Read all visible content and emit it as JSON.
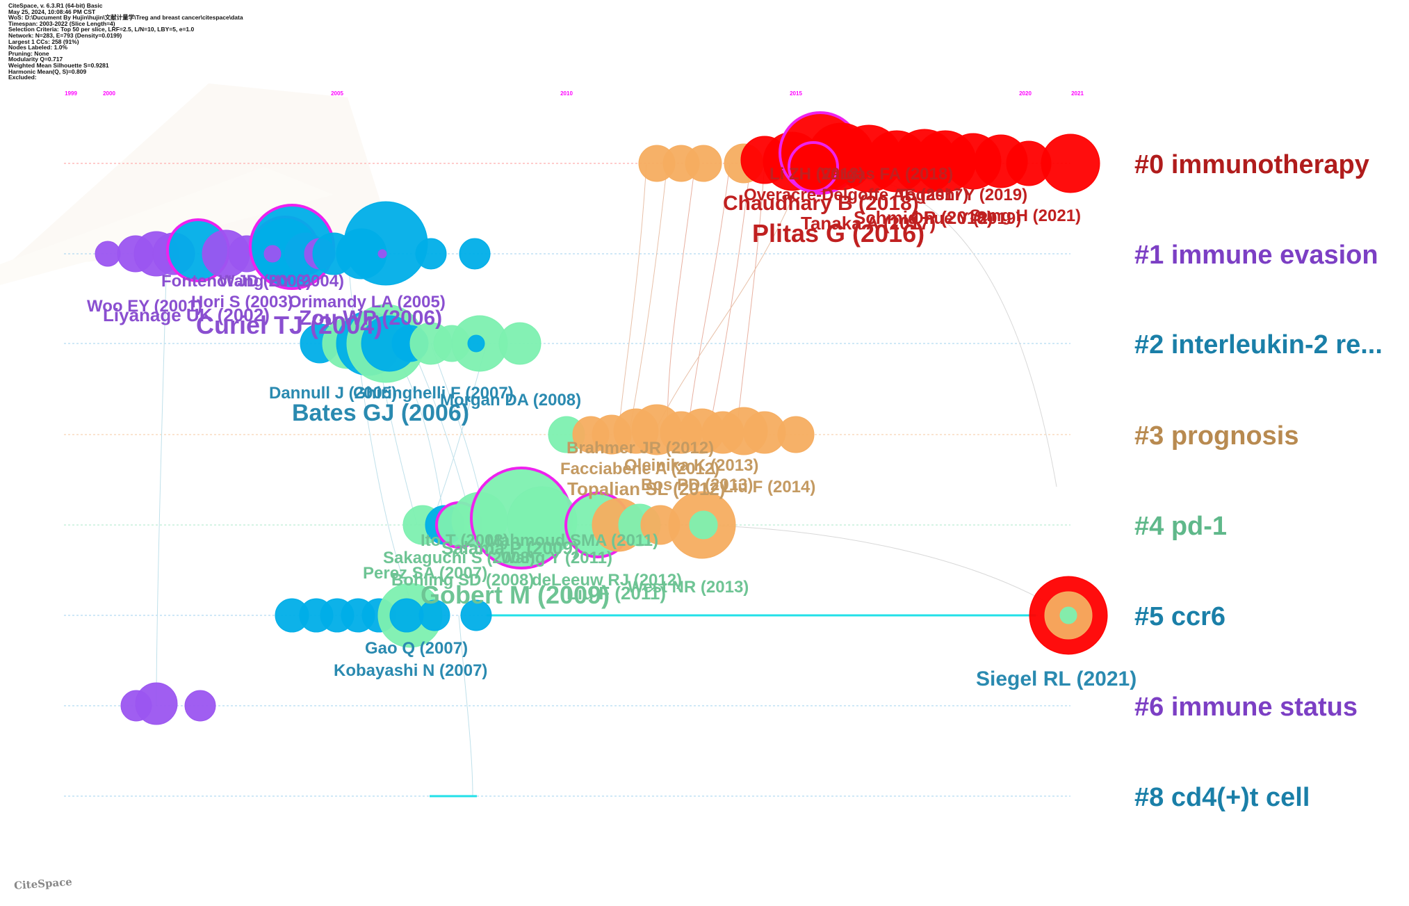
{
  "header": {
    "lines": [
      "CiteSpace, v. 6.3.R1 (64-bit) Basic",
      "May 25, 2024, 10:08:46 PM CST",
      "WoS: D:\\Ducument By Hujin\\hujin\\文献计量学\\Treg and breast cancer\\citespace\\data",
      "Timespan: 2003-2022 (Slice Length=4)",
      "Selection Criteria: Top 50 per slice, LRF=2.5, L/N=10, LBY=5, e=1.0",
      "Network: N=283, E=793 (Density=0.0199)",
      "Largest 1 CCs: 258 (91%)",
      "Nodes Labeled: 1.0%",
      "Pruning: None",
      "Modularity Q=0.717",
      "Weighted Mean Silhouette S=0.9281",
      "Harmonic Mean(Q, S)=0.809",
      "Excluded:"
    ]
  },
  "timeline": {
    "years": [
      "1999",
      "2000",
      "2005",
      "2010",
      "2015",
      "2020",
      "2021"
    ]
  },
  "clusters": [
    {
      "label": "#0 immunotherapy",
      "color": "#b01c1c"
    },
    {
      "label": "#1 immune evasion",
      "color": "#7c3fc4"
    },
    {
      "label": "#2 interleukin-2 re...",
      "color": "#1a7fa8"
    },
    {
      "label": "#3 prognosis",
      "color": "#b88a50"
    },
    {
      "label": "#4 pd-1",
      "color": "#5fb88a"
    },
    {
      "label": "#5 ccr6",
      "color": "#1a7fa8"
    },
    {
      "label": "#6 immune status",
      "color": "#7c3fc4"
    },
    {
      "label": "#8 cd4(+)t cell",
      "color": "#1a7fa8"
    }
  ],
  "node_labels": [
    {
      "text": "Li ZH (2018)",
      "color": "#c02020"
    },
    {
      "text": "Vargas FA (2018)",
      "color": "#c02020"
    },
    {
      "text": "Overacre-Delgoffe AE (2017)",
      "color": "#c02020"
    },
    {
      "text": "Togashi Y (2019)",
      "color": "#c02020"
    },
    {
      "text": "Chaudhary B (2018)",
      "color": "#c02020"
    },
    {
      "text": "Tanaka A (2017)",
      "color": "#c02020"
    },
    {
      "text": "Schmid P (2018)",
      "color": "#c02020"
    },
    {
      "text": "Ohue Y (2019)",
      "color": "#c02020"
    },
    {
      "text": "Sung H (2021)",
      "color": "#c02020"
    },
    {
      "text": "Plitas G (2016)",
      "color": "#c02020"
    },
    {
      "text": "Fontenot JD (2003)",
      "color": "#8a4fd0"
    },
    {
      "text": "Wang HY (2004)",
      "color": "#8a4fd0"
    },
    {
      "text": "Hori S (2003)",
      "color": "#8a4fd0"
    },
    {
      "text": "Orimandy LA (2005)",
      "color": "#8a4fd0"
    },
    {
      "text": "Woo EY (2001)",
      "color": "#8a4fd0"
    },
    {
      "text": "Liyanage UK (2002)",
      "color": "#8a4fd0"
    },
    {
      "text": "Zou WP (2006)",
      "color": "#8a4fd0"
    },
    {
      "text": "Curiel TJ (2004)",
      "color": "#8a4fd0"
    },
    {
      "text": "Dannull J (2005)",
      "color": "#2a8ab0"
    },
    {
      "text": "Ghiringhelli F (2007)",
      "color": "#2a8ab0"
    },
    {
      "text": "Morgan DA (2008)",
      "color": "#2a8ab0"
    },
    {
      "text": "Bates GJ (2006)",
      "color": "#2a8ab0"
    },
    {
      "text": "Brahmer JR (2012)",
      "color": "#c49a62"
    },
    {
      "text": "Facciabene A (2012)",
      "color": "#c49a62"
    },
    {
      "text": "Oleinika K (2013)",
      "color": "#c49a62"
    },
    {
      "text": "Topalian SL (2012)",
      "color": "#c49a62"
    },
    {
      "text": "Bos PD (2013)",
      "color": "#c49a62"
    },
    {
      "text": "Liu F (2014)",
      "color": "#c49a62"
    },
    {
      "text": "Ito T (2008)",
      "color": "#6ec494"
    },
    {
      "text": "Mahmoud SMA (2011)",
      "color": "#6ec494"
    },
    {
      "text": "Salama P (2009)",
      "color": "#6ec494"
    },
    {
      "text": "Sakaguchi S (2008)",
      "color": "#6ec494"
    },
    {
      "text": "Wang Y (2011)",
      "color": "#6ec494"
    },
    {
      "text": "Perez SA (2007)",
      "color": "#6ec494"
    },
    {
      "text": "Bohling SD (2008)",
      "color": "#6ec494"
    },
    {
      "text": "deLeeuw RJ (2012)",
      "color": "#6ec494"
    },
    {
      "text": "West NR (2013)",
      "color": "#6ec494"
    },
    {
      "text": "Liu F (2011)",
      "color": "#6ec494"
    },
    {
      "text": "Gobert M (2009)",
      "color": "#6ec494"
    },
    {
      "text": "Gao Q (2007)",
      "color": "#2a8ab0"
    },
    {
      "text": "Kobayashi N (2007)",
      "color": "#2a8ab0"
    },
    {
      "text": "Siegel RL (2021)",
      "color": "#2a8ab0"
    }
  ],
  "logo": {
    "text": "CiteSpace"
  }
}
